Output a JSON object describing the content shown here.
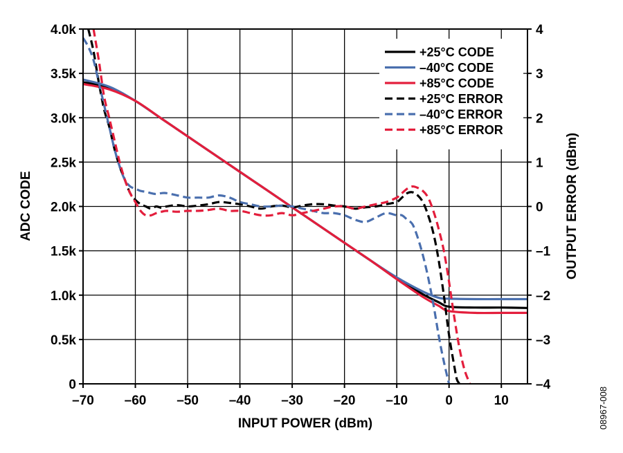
{
  "chart_data": {
    "type": "line",
    "xlabel": "INPUT POWER (dBm)",
    "ylabel": "ADC CODE",
    "y2label": "OUTPUT ERROR (dBm)",
    "figure_id": "08967-008",
    "xlim": [
      -70,
      15
    ],
    "ylim": [
      0,
      4000
    ],
    "y2lim": [
      -4,
      4
    ],
    "x_ticks": [
      -70,
      -60,
      -50,
      -40,
      -30,
      -20,
      -10,
      0,
      10
    ],
    "x_tick_labels": [
      "–70",
      "–60",
      "–50",
      "–40",
      "–30",
      "–20",
      "–10",
      "0",
      "10"
    ],
    "y_ticks": [
      0,
      500,
      1000,
      1500,
      2000,
      2500,
      3000,
      3500,
      4000
    ],
    "y_tick_labels": [
      "0",
      "0.5k",
      "1.0k",
      "1.5k",
      "2.0k",
      "2.5k",
      "3.0k",
      "3.5k",
      "4.0k"
    ],
    "y2_ticks": [
      -4,
      -3,
      -2,
      -1,
      0,
      1,
      2,
      3,
      4
    ],
    "y2_tick_labels": [
      "–4",
      "–3",
      "–2",
      "–1",
      "0",
      "1",
      "2",
      "3",
      "4"
    ],
    "grid": true,
    "legend_position": "top-right",
    "series": [
      {
        "name": "+25°C CODE",
        "axis": "left",
        "color": "#000000",
        "dash": "solid",
        "x": [
          -70,
          -65,
          -60,
          -55,
          -50,
          -45,
          -40,
          -35,
          -30,
          -25,
          -20,
          -15,
          -10,
          -5,
          -2,
          0,
          5,
          10,
          15
        ],
        "y": [
          3400,
          3340,
          3190,
          2990,
          2790,
          2590,
          2390,
          2190,
          1990,
          1790,
          1590,
          1390,
          1190,
          1010,
          920,
          870,
          860,
          860,
          855
        ]
      },
      {
        "name": "–40°C CODE",
        "axis": "left",
        "color": "#4a6fae",
        "dash": "solid",
        "x": [
          -70,
          -65,
          -60,
          -55,
          -50,
          -45,
          -40,
          -35,
          -30,
          -25,
          -20,
          -15,
          -10,
          -5,
          -2,
          0,
          5,
          10,
          15
        ],
        "y": [
          3430,
          3350,
          3190,
          2990,
          2790,
          2590,
          2390,
          2190,
          1990,
          1790,
          1590,
          1390,
          1200,
          1040,
          970,
          960,
          955,
          955,
          955
        ]
      },
      {
        "name": "+85°C CODE",
        "axis": "left",
        "color": "#e31e3c",
        "dash": "solid",
        "x": [
          -70,
          -65,
          -60,
          -55,
          -50,
          -45,
          -40,
          -35,
          -30,
          -25,
          -20,
          -15,
          -10,
          -5,
          -2,
          0,
          5,
          10,
          15
        ],
        "y": [
          3380,
          3320,
          3190,
          2990,
          2790,
          2590,
          2390,
          2190,
          1990,
          1790,
          1590,
          1390,
          1180,
          980,
          880,
          820,
          800,
          800,
          800
        ]
      },
      {
        "name": "+25°C ERROR",
        "axis": "right",
        "color": "#000000",
        "dash": "dashed",
        "x": [
          -69,
          -68,
          -67,
          -66,
          -65,
          -64,
          -63,
          -62,
          -61,
          -60,
          -59,
          -58,
          -57,
          -56,
          -55,
          -54,
          -52,
          -50,
          -48,
          -46,
          -44,
          -42,
          -40,
          -38,
          -36,
          -34,
          -32,
          -30,
          -28,
          -26,
          -24,
          -22,
          -20,
          -18,
          -16,
          -14,
          -12,
          -10,
          -9,
          -8,
          -7,
          -6,
          -5,
          -4,
          -3,
          -2,
          -1,
          0,
          1,
          1.5,
          2
        ],
        "y": [
          4.0,
          3.5,
          2.8,
          2.2,
          1.8,
          1.3,
          0.9,
          0.6,
          0.3,
          0.15,
          0.05,
          0.0,
          -0.05,
          0.0,
          -0.03,
          0.0,
          0.03,
          0.0,
          0.02,
          0.05,
          0.1,
          0.08,
          0.05,
          0.0,
          -0.05,
          0.0,
          0.02,
          -0.02,
          0.02,
          0.05,
          0.05,
          0.02,
          0.0,
          -0.05,
          -0.02,
          0.0,
          0.05,
          0.1,
          0.2,
          0.3,
          0.32,
          0.25,
          0.1,
          -0.2,
          -0.6,
          -1.2,
          -2.0,
          -2.9,
          -3.6,
          -3.9,
          -4.0
        ]
      },
      {
        "name": "–40°C ERROR",
        "axis": "right",
        "color": "#4a6fae",
        "dash": "dashed",
        "x": [
          -70,
          -69,
          -68,
          -67,
          -66,
          -65,
          -64,
          -63,
          -62,
          -61,
          -60,
          -59,
          -58,
          -57,
          -56,
          -55,
          -54,
          -52,
          -50,
          -48,
          -46,
          -44,
          -42,
          -40,
          -38,
          -36,
          -34,
          -32,
          -30,
          -28,
          -26,
          -24,
          -22,
          -20,
          -18,
          -16,
          -14,
          -12,
          -10,
          -9,
          -8,
          -7,
          -6,
          -5,
          -4,
          -3,
          -2,
          -1,
          0
        ],
        "y": [
          3.8,
          3.6,
          3.3,
          2.8,
          2.3,
          1.8,
          1.3,
          0.9,
          0.6,
          0.45,
          0.4,
          0.35,
          0.33,
          0.3,
          0.28,
          0.3,
          0.3,
          0.25,
          0.2,
          0.2,
          0.2,
          0.25,
          0.2,
          0.1,
          0.05,
          0.0,
          0.0,
          0.02,
          0.0,
          -0.05,
          -0.1,
          -0.15,
          -0.15,
          -0.2,
          -0.3,
          -0.35,
          -0.25,
          -0.15,
          -0.2,
          -0.2,
          -0.3,
          -0.4,
          -0.7,
          -1.1,
          -1.6,
          -2.2,
          -2.9,
          -3.5,
          -4.0
        ]
      },
      {
        "name": "+85°C ERROR",
        "axis": "right",
        "color": "#e31e3c",
        "dash": "dashed",
        "x": [
          -68,
          -67,
          -66,
          -65,
          -64,
          -63,
          -62,
          -61,
          -60,
          -59,
          -58,
          -57,
          -56,
          -55,
          -54,
          -52,
          -50,
          -48,
          -46,
          -44,
          -42,
          -40,
          -38,
          -36,
          -34,
          -32,
          -30,
          -28,
          -26,
          -24,
          -22,
          -20,
          -18,
          -16,
          -14,
          -12,
          -10,
          -9,
          -8,
          -7,
          -6,
          -5,
          -4,
          -3,
          -2,
          -1,
          0,
          1,
          2,
          3,
          4
        ],
        "y": [
          4.0,
          3.3,
          2.5,
          2.0,
          1.5,
          1.0,
          0.6,
          0.3,
          0.1,
          -0.1,
          -0.2,
          -0.2,
          -0.15,
          -0.12,
          -0.1,
          -0.12,
          -0.1,
          -0.1,
          -0.08,
          -0.05,
          -0.1,
          -0.1,
          -0.15,
          -0.2,
          -0.2,
          -0.15,
          -0.2,
          -0.15,
          -0.1,
          -0.05,
          0.0,
          0.0,
          -0.05,
          0.0,
          0.05,
          0.1,
          0.2,
          0.3,
          0.4,
          0.45,
          0.42,
          0.35,
          0.2,
          -0.1,
          -0.5,
          -1.0,
          -1.7,
          -2.5,
          -3.2,
          -3.7,
          -4.0
        ]
      }
    ]
  }
}
